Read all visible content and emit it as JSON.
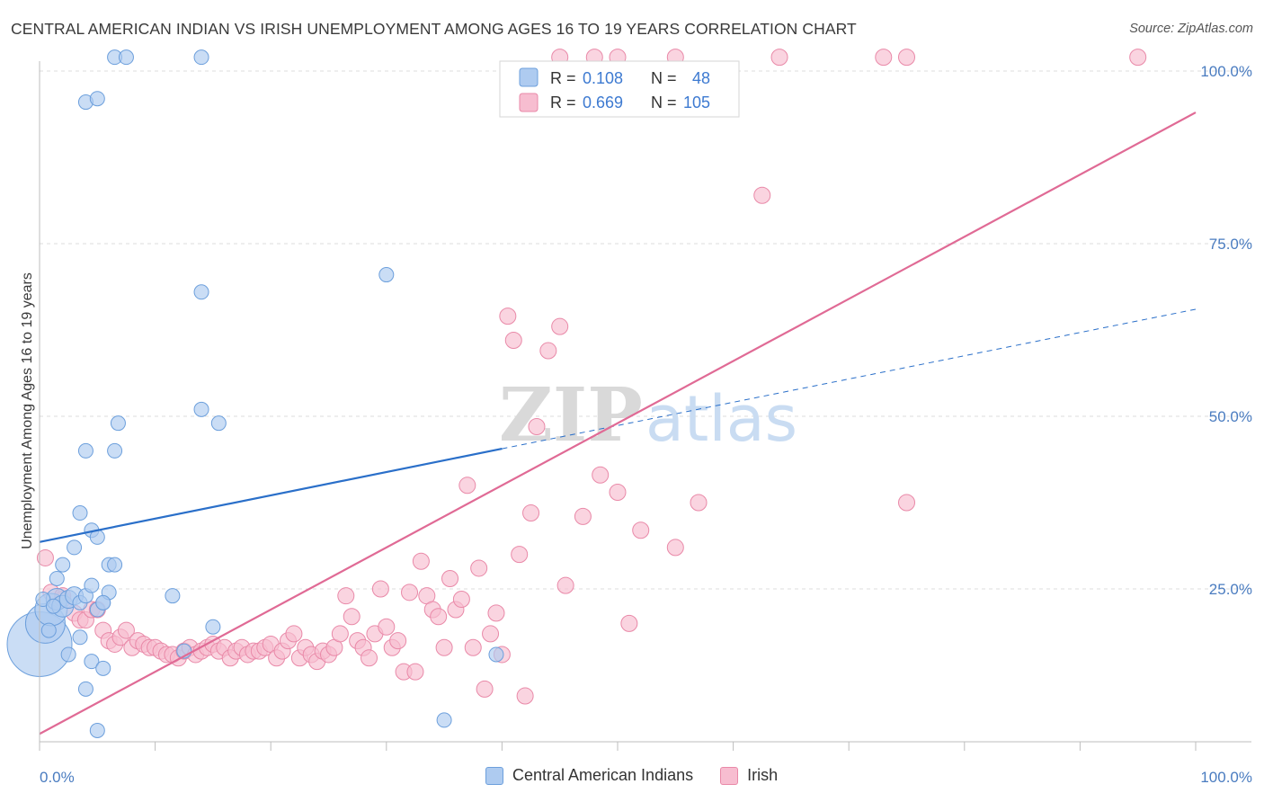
{
  "title": "CENTRAL AMERICAN INDIAN VS IRISH UNEMPLOYMENT AMONG AGES 16 TO 19 YEARS CORRELATION CHART",
  "source": "Source: ZipAtlas.com",
  "watermark": {
    "zip": "ZIP",
    "atlas": "atlas"
  },
  "colors": {
    "blue_fill": "#aecbf0",
    "blue_stroke": "#6c9fdc",
    "blue_line": "#2a6fc9",
    "pink_fill": "#f7bdd0",
    "pink_stroke": "#e989a8",
    "pink_line": "#e06a95",
    "axis_label": "#4a7cc0",
    "grid": "#dcdcdc"
  },
  "legend_box": {
    "rows": [
      {
        "r_label": "R =",
        "r_value": "0.108",
        "n_label": "N =",
        "n_value": "48"
      },
      {
        "r_label": "R =",
        "r_value": "0.669",
        "n_label": "N =",
        "n_value": "105"
      }
    ]
  },
  "legend_bottom": [
    "Central American Indians",
    "Irish"
  ],
  "chart_data": {
    "type": "scatter",
    "title": "CENTRAL AMERICAN INDIAN VS IRISH UNEMPLOYMENT AMONG AGES 16 TO 19 YEARS CORRELATION CHART",
    "xlabel": "",
    "ylabel": "Unemployment Among Ages 16 to 19 years",
    "xlim": [
      0,
      1.05
    ],
    "ylim": [
      0,
      1.03
    ],
    "x_tick_labels": [
      "0.0%",
      "100.0%"
    ],
    "y_tick_labels": [
      "25.0%",
      "50.0%",
      "75.0%",
      "100.0%"
    ],
    "y_ticks": [
      0.25,
      0.5,
      0.75,
      1.0
    ],
    "grid": true,
    "legend_position": "top-center",
    "series": [
      {
        "name": "Central American Indians",
        "r": 0.108,
        "n": 48,
        "trend": {
          "x0": 0.0,
          "y0": 0.318,
          "x1": 0.4,
          "y1": 0.453,
          "dash_x1": 1.0,
          "dash_y1": 0.655
        },
        "points": [
          [
            0.0,
            0.17,
            36
          ],
          [
            0.005,
            0.2,
            22
          ],
          [
            0.01,
            0.22,
            18
          ],
          [
            0.015,
            0.235,
            12
          ],
          [
            0.02,
            0.225,
            12
          ],
          [
            0.025,
            0.235,
            10
          ],
          [
            0.03,
            0.24,
            10
          ],
          [
            0.035,
            0.23,
            8
          ],
          [
            0.04,
            0.24,
            8
          ],
          [
            0.045,
            0.255,
            8
          ],
          [
            0.05,
            0.22,
            8
          ],
          [
            0.055,
            0.23,
            8
          ],
          [
            0.06,
            0.245,
            8
          ],
          [
            0.015,
            0.265,
            8
          ],
          [
            0.02,
            0.285,
            8
          ],
          [
            0.03,
            0.31,
            8
          ],
          [
            0.035,
            0.36,
            8
          ],
          [
            0.045,
            0.335,
            8
          ],
          [
            0.05,
            0.325,
            8
          ],
          [
            0.06,
            0.285,
            8
          ],
          [
            0.065,
            0.285,
            8
          ],
          [
            0.055,
            0.23,
            8
          ],
          [
            0.025,
            0.155,
            8
          ],
          [
            0.035,
            0.18,
            8
          ],
          [
            0.04,
            0.105,
            8
          ],
          [
            0.045,
            0.145,
            8
          ],
          [
            0.05,
            0.045,
            8
          ],
          [
            0.055,
            0.135,
            8
          ],
          [
            0.04,
            0.45,
            8
          ],
          [
            0.065,
            0.45,
            8
          ],
          [
            0.068,
            0.49,
            8
          ],
          [
            0.14,
            0.51,
            8
          ],
          [
            0.14,
            0.68,
            8
          ],
          [
            0.155,
            0.49,
            8
          ],
          [
            0.115,
            0.24,
            8
          ],
          [
            0.125,
            0.16,
            8
          ],
          [
            0.15,
            0.195,
            8
          ],
          [
            0.3,
            0.705,
            8
          ],
          [
            0.04,
            0.955,
            8
          ],
          [
            0.05,
            0.96,
            8
          ],
          [
            0.065,
            1.02,
            8
          ],
          [
            0.075,
            1.02,
            8
          ],
          [
            0.14,
            1.02,
            8
          ],
          [
            0.35,
            0.06,
            8
          ],
          [
            0.395,
            0.155,
            8
          ],
          [
            0.003,
            0.235,
            8
          ],
          [
            0.008,
            0.19,
            8
          ],
          [
            0.012,
            0.225,
            8
          ]
        ]
      },
      {
        "name": "Irish",
        "r": 0.669,
        "n": 105,
        "trend": {
          "x0": 0.0,
          "y0": 0.04,
          "x1": 1.0,
          "y1": 0.94
        },
        "points": [
          [
            0.005,
            0.295,
            9
          ],
          [
            0.01,
            0.245,
            9
          ],
          [
            0.02,
            0.235,
            9
          ],
          [
            0.03,
            0.215,
            9
          ],
          [
            0.035,
            0.205,
            9
          ],
          [
            0.04,
            0.205,
            9
          ],
          [
            0.045,
            0.22,
            9
          ],
          [
            0.05,
            0.22,
            9
          ],
          [
            0.055,
            0.19,
            9
          ],
          [
            0.06,
            0.175,
            9
          ],
          [
            0.065,
            0.17,
            9
          ],
          [
            0.07,
            0.18,
            9
          ],
          [
            0.075,
            0.19,
            9
          ],
          [
            0.08,
            0.165,
            9
          ],
          [
            0.085,
            0.175,
            9
          ],
          [
            0.09,
            0.17,
            9
          ],
          [
            0.095,
            0.165,
            9
          ],
          [
            0.1,
            0.165,
            9
          ],
          [
            0.105,
            0.16,
            9
          ],
          [
            0.11,
            0.155,
            9
          ],
          [
            0.115,
            0.155,
            9
          ],
          [
            0.12,
            0.15,
            9
          ],
          [
            0.125,
            0.16,
            9
          ],
          [
            0.13,
            0.165,
            9
          ],
          [
            0.135,
            0.155,
            9
          ],
          [
            0.14,
            0.16,
            9
          ],
          [
            0.145,
            0.165,
            9
          ],
          [
            0.15,
            0.17,
            9
          ],
          [
            0.155,
            0.16,
            9
          ],
          [
            0.16,
            0.165,
            9
          ],
          [
            0.165,
            0.15,
            9
          ],
          [
            0.17,
            0.16,
            9
          ],
          [
            0.175,
            0.165,
            9
          ],
          [
            0.18,
            0.155,
            9
          ],
          [
            0.185,
            0.16,
            9
          ],
          [
            0.19,
            0.16,
            9
          ],
          [
            0.195,
            0.165,
            9
          ],
          [
            0.2,
            0.17,
            9
          ],
          [
            0.205,
            0.15,
            9
          ],
          [
            0.21,
            0.16,
            9
          ],
          [
            0.215,
            0.175,
            9
          ],
          [
            0.22,
            0.185,
            9
          ],
          [
            0.225,
            0.15,
            9
          ],
          [
            0.23,
            0.165,
            9
          ],
          [
            0.235,
            0.155,
            9
          ],
          [
            0.24,
            0.145,
            9
          ],
          [
            0.245,
            0.16,
            9
          ],
          [
            0.25,
            0.155,
            9
          ],
          [
            0.255,
            0.165,
            9
          ],
          [
            0.26,
            0.185,
            9
          ],
          [
            0.265,
            0.24,
            9
          ],
          [
            0.27,
            0.21,
            9
          ],
          [
            0.275,
            0.175,
            9
          ],
          [
            0.28,
            0.165,
            9
          ],
          [
            0.285,
            0.15,
            9
          ],
          [
            0.29,
            0.185,
            9
          ],
          [
            0.295,
            0.25,
            9
          ],
          [
            0.3,
            0.195,
            9
          ],
          [
            0.305,
            0.165,
            9
          ],
          [
            0.31,
            0.175,
            9
          ],
          [
            0.315,
            0.13,
            9
          ],
          [
            0.32,
            0.245,
            9
          ],
          [
            0.325,
            0.13,
            9
          ],
          [
            0.33,
            0.29,
            9
          ],
          [
            0.335,
            0.24,
            9
          ],
          [
            0.34,
            0.22,
            9
          ],
          [
            0.345,
            0.21,
            9
          ],
          [
            0.35,
            0.165,
            9
          ],
          [
            0.355,
            0.265,
            9
          ],
          [
            0.36,
            0.22,
            9
          ],
          [
            0.365,
            0.235,
            9
          ],
          [
            0.37,
            0.4,
            9
          ],
          [
            0.375,
            0.165,
            9
          ],
          [
            0.38,
            0.28,
            9
          ],
          [
            0.385,
            0.105,
            9
          ],
          [
            0.39,
            0.185,
            9
          ],
          [
            0.395,
            0.215,
            9
          ],
          [
            0.4,
            0.155,
            9
          ],
          [
            0.405,
            0.645,
            9
          ],
          [
            0.41,
            0.61,
            9
          ],
          [
            0.415,
            0.3,
            9
          ],
          [
            0.42,
            0.095,
            9
          ],
          [
            0.425,
            0.36,
            9
          ],
          [
            0.43,
            0.485,
            9
          ],
          [
            0.44,
            0.595,
            9
          ],
          [
            0.45,
            0.63,
            9
          ],
          [
            0.455,
            0.255,
            9
          ],
          [
            0.47,
            0.355,
            9
          ],
          [
            0.485,
            0.415,
            9
          ],
          [
            0.5,
            0.39,
            9
          ],
          [
            0.51,
            0.2,
            9
          ],
          [
            0.52,
            0.335,
            9
          ],
          [
            0.55,
            0.31,
            9
          ],
          [
            0.57,
            0.375,
            9
          ],
          [
            0.625,
            0.82,
            9
          ],
          [
            0.75,
            0.375,
            9
          ],
          [
            0.5,
            1.02,
            9
          ],
          [
            0.55,
            1.02,
            9
          ],
          [
            0.64,
            1.02,
            9
          ],
          [
            0.73,
            1.02,
            9
          ],
          [
            0.75,
            1.02,
            9
          ],
          [
            0.95,
            1.02,
            9
          ],
          [
            0.45,
            1.02,
            9
          ],
          [
            0.48,
            1.02,
            9
          ],
          [
            0.02,
            0.24,
            9
          ]
        ]
      }
    ]
  }
}
